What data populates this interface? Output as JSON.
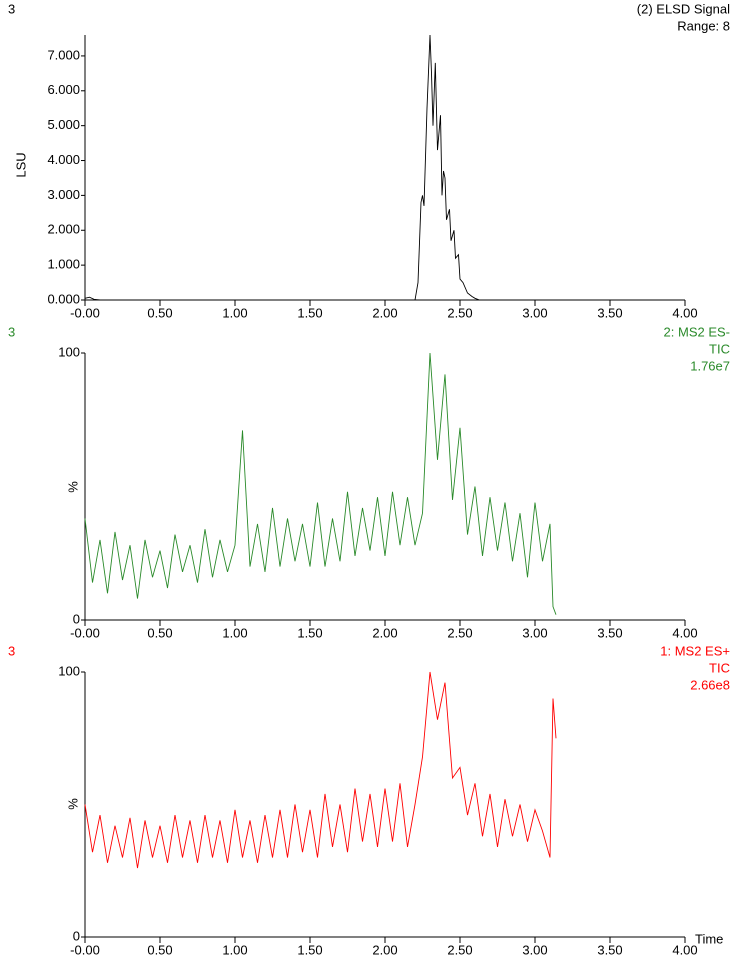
{
  "chart_data": [
    {
      "type": "line",
      "label": "3",
      "ylabel": "LSU",
      "series": [
        {
          "name": "(2) ELSD Signal",
          "color": "#000000",
          "values": [
            0.05,
            0.08,
            0.02,
            0,
            0,
            0,
            0,
            0.5,
            2.8,
            3.0,
            2.7,
            5.5,
            7.6,
            6.5,
            5.0,
            6.8,
            4.3,
            5.3,
            3.0,
            3.7,
            3.5,
            2.3,
            2.6,
            1.7,
            2.0,
            1.2,
            1.3,
            0.6,
            0.5,
            0.2,
            0.1,
            0.05,
            0,
            0,
            0
          ]
        }
      ],
      "subtitle_lines": [
        "Range: 8"
      ],
      "x": [
        0,
        0.03,
        0.06,
        0.1,
        0.8,
        1.5,
        2.2,
        2.22,
        2.24,
        2.25,
        2.26,
        2.28,
        2.3,
        2.31,
        2.32,
        2.335,
        2.35,
        2.37,
        2.38,
        2.39,
        2.4,
        2.41,
        2.43,
        2.44,
        2.46,
        2.47,
        2.49,
        2.5,
        2.52,
        2.55,
        2.58,
        2.6,
        2.63,
        3.0,
        4.0
      ],
      "xlim": [
        0,
        4
      ],
      "xticks": [
        {
          "value": 0,
          "label": "-0.00"
        },
        {
          "value": 0.5,
          "label": "0.50"
        },
        {
          "value": 1,
          "label": "1.00"
        },
        {
          "value": 1.5,
          "label": "1.50"
        },
        {
          "value": 2,
          "label": "2.00"
        },
        {
          "value": 2.5,
          "label": "2.50"
        },
        {
          "value": 3,
          "label": "3.00"
        },
        {
          "value": 3.5,
          "label": "3.50"
        },
        {
          "value": 4,
          "label": "4.00"
        }
      ],
      "ylim": [
        0,
        7.6
      ],
      "yticks": [
        {
          "value": 0,
          "label": "0.000"
        },
        {
          "value": 1,
          "label": "1.000"
        },
        {
          "value": 2,
          "label": "2.000"
        },
        {
          "value": 3,
          "label": "3.000"
        },
        {
          "value": 4,
          "label": "4.000"
        },
        {
          "value": 5,
          "label": "5.000"
        },
        {
          "value": 6,
          "label": "6.000"
        },
        {
          "value": 7,
          "label": "7.000"
        }
      ]
    },
    {
      "type": "line",
      "label": "3",
      "ylabel": "%",
      "series": [
        {
          "name": "2: MS2 ES-",
          "color": "#2a8a2a",
          "values": [
            38,
            14,
            30,
            10,
            33,
            15,
            28,
            8,
            30,
            16,
            26,
            12,
            32,
            18,
            28,
            14,
            34,
            16,
            30,
            18,
            28,
            71,
            20,
            36,
            18,
            42,
            20,
            38,
            22,
            36,
            20,
            44,
            20,
            38,
            22,
            48,
            24,
            42,
            26,
            46,
            24,
            48,
            28,
            46,
            28,
            40,
            100,
            60,
            92,
            45,
            72,
            32,
            50,
            24,
            46,
            26,
            44,
            22,
            40,
            16,
            44,
            22,
            36,
            5,
            2
          ]
        }
      ],
      "subtitle_lines": [
        "TIC",
        "1.76e7"
      ],
      "x": [
        0,
        0.05,
        0.1,
        0.15,
        0.2,
        0.25,
        0.3,
        0.35,
        0.4,
        0.45,
        0.5,
        0.55,
        0.6,
        0.65,
        0.7,
        0.75,
        0.8,
        0.85,
        0.9,
        0.95,
        1.0,
        1.05,
        1.1,
        1.15,
        1.2,
        1.25,
        1.3,
        1.35,
        1.4,
        1.45,
        1.5,
        1.55,
        1.6,
        1.65,
        1.7,
        1.75,
        1.8,
        1.85,
        1.9,
        1.95,
        2.0,
        2.05,
        2.1,
        2.15,
        2.2,
        2.25,
        2.3,
        2.35,
        2.4,
        2.45,
        2.5,
        2.55,
        2.6,
        2.65,
        2.7,
        2.75,
        2.8,
        2.85,
        2.9,
        2.95,
        3.0,
        3.05,
        3.1,
        3.12,
        3.14
      ],
      "xlim": [
        0,
        4
      ],
      "xticks": [
        {
          "value": 0,
          "label": "-0.00"
        },
        {
          "value": 0.5,
          "label": "0.50"
        },
        {
          "value": 1,
          "label": "1.00"
        },
        {
          "value": 1.5,
          "label": "1.50"
        },
        {
          "value": 2,
          "label": "2.00"
        },
        {
          "value": 2.5,
          "label": "2.50"
        },
        {
          "value": 3,
          "label": "3.00"
        },
        {
          "value": 3.5,
          "label": "3.50"
        },
        {
          "value": 4,
          "label": "4.00"
        }
      ],
      "ylim": [
        0,
        100
      ],
      "yticks": [
        0,
        100
      ]
    },
    {
      "type": "line",
      "label": "3",
      "ylabel": "%",
      "xlabel": "Time",
      "series": [
        {
          "name": "1: MS2 ES+",
          "color": "#ff0000",
          "values": [
            50,
            32,
            46,
            28,
            42,
            30,
            45,
            26,
            44,
            30,
            42,
            28,
            46,
            30,
            44,
            28,
            46,
            30,
            44,
            28,
            48,
            30,
            44,
            28,
            46,
            30,
            48,
            30,
            50,
            32,
            48,
            30,
            54,
            34,
            50,
            32,
            56,
            36,
            54,
            34,
            56,
            36,
            58,
            34,
            50,
            68,
            100,
            82,
            96,
            60,
            64,
            46,
            58,
            38,
            54,
            34,
            52,
            38,
            50,
            36,
            48,
            40,
            30,
            90,
            75
          ]
        }
      ],
      "subtitle_lines": [
        "TIC",
        "2.66e8"
      ],
      "x": [
        0,
        0.05,
        0.1,
        0.15,
        0.2,
        0.25,
        0.3,
        0.35,
        0.4,
        0.45,
        0.5,
        0.55,
        0.6,
        0.65,
        0.7,
        0.75,
        0.8,
        0.85,
        0.9,
        0.95,
        1.0,
        1.05,
        1.1,
        1.15,
        1.2,
        1.25,
        1.3,
        1.35,
        1.4,
        1.45,
        1.5,
        1.55,
        1.6,
        1.65,
        1.7,
        1.75,
        1.8,
        1.85,
        1.9,
        1.95,
        2.0,
        2.05,
        2.1,
        2.15,
        2.2,
        2.25,
        2.3,
        2.35,
        2.4,
        2.45,
        2.5,
        2.55,
        2.6,
        2.65,
        2.7,
        2.75,
        2.8,
        2.85,
        2.9,
        2.95,
        3.0,
        3.05,
        3.1,
        3.12,
        3.14
      ],
      "xlim": [
        0,
        4
      ],
      "xticks": [
        {
          "value": 0,
          "label": "-0.00"
        },
        {
          "value": 0.5,
          "label": "0.50"
        },
        {
          "value": 1,
          "label": "1.00"
        },
        {
          "value": 1.5,
          "label": "1.50"
        },
        {
          "value": 2,
          "label": "2.00"
        },
        {
          "value": 2.5,
          "label": "2.50"
        },
        {
          "value": 3,
          "label": "3.00"
        },
        {
          "value": 3.5,
          "label": "3.50"
        },
        {
          "value": 4,
          "label": "4.00"
        }
      ],
      "ylim": [
        0,
        100
      ],
      "yticks": [
        0,
        100
      ]
    }
  ]
}
